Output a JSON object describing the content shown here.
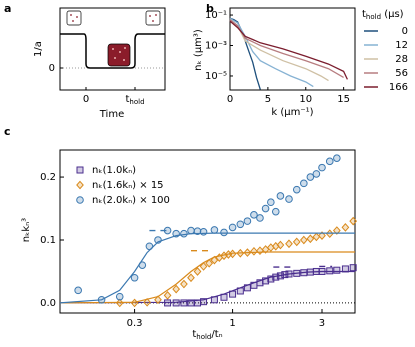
{
  "chart_data": [
    {
      "type": "schematic",
      "panel": "a",
      "ylabel": "1/a",
      "xlabel": "Time",
      "yticks": [
        0
      ],
      "xtick_labels": [
        "0",
        [
          "t",
          "hold"
        ]
      ]
    },
    {
      "type": "line",
      "panel": "b",
      "xlabel": "k (μm⁻¹)",
      "ylabel": "nₖ (μm³)",
      "log_y": true,
      "xlim": [
        0,
        16.5
      ],
      "xticks": [
        0,
        5,
        10,
        15
      ],
      "ylim": [
        1.2e-06,
        0.29
      ],
      "yticks": [
        {
          "value": 0.1,
          "label": "10⁻¹"
        },
        {
          "value": 0.001,
          "label": "10⁻³"
        },
        {
          "value": 1e-05,
          "label": "10⁻⁵"
        }
      ],
      "legend_title": [
        "t",
        "hold",
        " (μs)"
      ],
      "series": [
        {
          "name": "0",
          "color": "#1d4f7c",
          "x": [
            0,
            0.5,
            1,
            1.5,
            2,
            2.5,
            3,
            3.5,
            4
          ],
          "values": [
            0.06,
            0.05,
            0.035,
            0.01,
            0.002,
            0.0004,
            8e-05,
            8e-06,
            1.3e-06
          ]
        },
        {
          "name": "12",
          "color": "#86b2d3",
          "x": [
            0,
            1,
            2,
            3,
            4,
            6,
            8,
            10,
            11
          ],
          "values": [
            0.06,
            0.03,
            0.004,
            0.0004,
            0.0001,
            3e-05,
            1e-05,
            4e-06,
            2e-06
          ]
        },
        {
          "name": "28",
          "color": "#cfc0a4",
          "x": [
            0,
            1,
            2,
            4,
            7,
            10,
            12,
            13
          ],
          "values": [
            0.05,
            0.02,
            0.002,
            0.0005,
            0.0001,
            3e-05,
            1e-05,
            5e-06
          ]
        },
        {
          "name": "56",
          "color": "#b77d80",
          "x": [
            0,
            1,
            2,
            4,
            7,
            10,
            13,
            15
          ],
          "values": [
            0.05,
            0.02,
            0.003,
            0.001,
            0.0003,
            0.0001,
            3e-05,
            8e-06
          ]
        },
        {
          "name": "166",
          "color": "#7b1d2e",
          "x": [
            0,
            1,
            2,
            4,
            7,
            10,
            13,
            15,
            15.5
          ],
          "values": [
            0.04,
            0.015,
            0.004,
            0.0015,
            0.0006,
            0.0002,
            6e-05,
            2e-05,
            6e-06
          ]
        }
      ]
    },
    {
      "type": "scatter",
      "panel": "c",
      "xlabel": [
        "t",
        "hold",
        "/tₙ"
      ],
      "ylabel": "nₖkₙ³",
      "log_x": true,
      "xlim": [
        0.12,
        4.5
      ],
      "xticks": [
        0.3,
        1,
        3
      ],
      "ylim": [
        -0.016,
        0.243
      ],
      "yticks": [
        {
          "value": 0,
          "label": "0.0"
        },
        0.1,
        0.2
      ],
      "hline": 0,
      "series": [
        {
          "name": "nₖ(1.0kₙ)",
          "color": "#4a2e8e",
          "marker": "square",
          "x": [
            0.45,
            0.5,
            0.55,
            0.6,
            0.65,
            0.7,
            0.8,
            0.9,
            1.0,
            1.1,
            1.2,
            1.3,
            1.4,
            1.5,
            1.6,
            1.7,
            1.8,
            1.9,
            2.0,
            2.2,
            2.4,
            2.6,
            2.8,
            3.0,
            3.3,
            3.6,
            4.0,
            4.4
          ],
          "values": [
            0,
            0,
            0,
            0,
            0,
            0.002,
            0.005,
            0.009,
            0.014,
            0.019,
            0.024,
            0.028,
            0.032,
            0.035,
            0.038,
            0.041,
            0.043,
            0.045,
            0.046,
            0.047,
            0.048,
            0.049,
            0.05,
            0.05,
            0.051,
            0.052,
            0.054,
            0.056
          ],
          "fit": {
            "x": [
              0.12,
              0.5,
              0.7,
              0.9,
              1.1,
              1.3,
              1.6,
              2,
              2.5,
              3,
              4.5
            ],
            "values": [
              0,
              0.001,
              0.005,
              0.014,
              0.024,
              0.032,
              0.041,
              0.046,
              0.049,
              0.05,
              0.05
            ]
          },
          "dashes": [
            {
              "x": [
                1.65,
                2.05
              ],
              "y": 0.057
            },
            {
              "x": [
                2.9,
                3.4
              ],
              "y": 0.058
            }
          ]
        },
        {
          "name": "nₖ(1.6kₙ) × 15",
          "color": "#d98a1c",
          "marker": "diamond",
          "x": [
            0.25,
            0.3,
            0.35,
            0.4,
            0.45,
            0.5,
            0.55,
            0.6,
            0.65,
            0.7,
            0.75,
            0.8,
            0.85,
            0.9,
            0.95,
            1.0,
            1.1,
            1.2,
            1.3,
            1.4,
            1.5,
            1.6,
            1.7,
            1.8,
            2.0,
            2.2,
            2.4,
            2.6,
            2.8,
            3.0,
            3.3,
            3.6,
            4.0,
            4.4
          ],
          "values": [
            0,
            0,
            0.001,
            0.005,
            0.012,
            0.022,
            0.03,
            0.04,
            0.05,
            0.058,
            0.063,
            0.068,
            0.072,
            0.075,
            0.077,
            0.078,
            0.079,
            0.08,
            0.082,
            0.083,
            0.085,
            0.088,
            0.09,
            0.092,
            0.094,
            0.097,
            0.1,
            0.102,
            0.105,
            0.107,
            0.11,
            0.115,
            0.12,
            0.13
          ],
          "fit": {
            "x": [
              0.12,
              0.3,
              0.4,
              0.5,
              0.6,
              0.7,
              0.8,
              1,
              1.5,
              2,
              4.5
            ],
            "values": [
              0,
              0.001,
              0.01,
              0.03,
              0.05,
              0.064,
              0.073,
              0.079,
              0.081,
              0.081,
              0.081
            ]
          },
          "dashes": [
            {
              "x": [
                0.6,
                0.78
              ],
              "y": 0.083
            }
          ]
        },
        {
          "name": "nₖ(2.0kₙ) × 100",
          "color": "#3b78b0",
          "marker": "circle",
          "x": [
            0.15,
            0.2,
            0.25,
            0.3,
            0.33,
            0.36,
            0.4,
            0.45,
            0.5,
            0.55,
            0.6,
            0.65,
            0.7,
            0.8,
            0.9,
            1.0,
            1.1,
            1.2,
            1.3,
            1.4,
            1.5,
            1.6,
            1.7,
            1.8,
            2.0,
            2.2,
            2.4,
            2.6,
            2.8,
            3.0,
            3.3,
            3.6
          ],
          "values": [
            0.02,
            0.005,
            0.01,
            0.04,
            0.06,
            0.09,
            0.1,
            0.115,
            0.11,
            0.11,
            0.115,
            0.114,
            0.113,
            0.116,
            0.112,
            0.12,
            0.125,
            0.13,
            0.14,
            0.135,
            0.15,
            0.16,
            0.145,
            0.17,
            0.165,
            0.18,
            0.19,
            0.2,
            0.205,
            0.215,
            0.225,
            0.23
          ],
          "fit": {
            "x": [
              0.12,
              0.2,
              0.25,
              0.3,
              0.35,
              0.4,
              0.5,
              0.6,
              0.8,
              1,
              2,
              4.5
            ],
            "values": [
              0,
              0.005,
              0.02,
              0.05,
              0.08,
              0.097,
              0.107,
              0.11,
              0.111,
              0.111,
              0.111,
              0.111
            ]
          },
          "dashes": [
            {
              "x": [
                0.36,
                0.47
              ],
              "y": 0.115
            }
          ]
        }
      ]
    }
  ]
}
